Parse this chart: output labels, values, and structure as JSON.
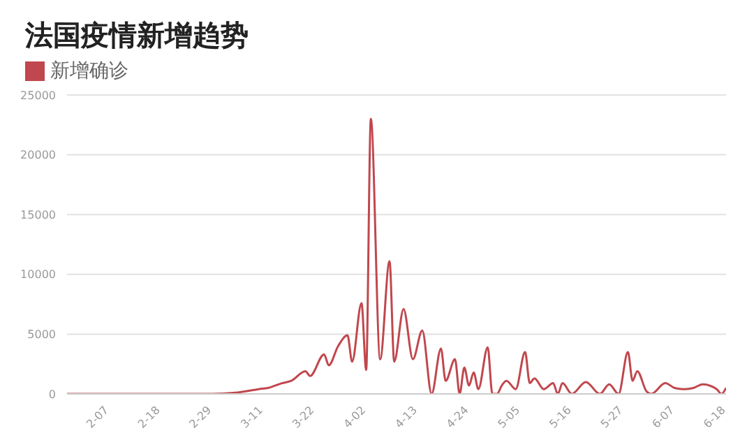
{
  "chart_data": {
    "type": "line",
    "title": "法国疫情新增趋势",
    "legend": "top left",
    "grid": "y",
    "marker": "none",
    "x": [
      "--01-29",
      "--02-29",
      "--03-05",
      "--03-10",
      "--03-12",
      "--03-15",
      "--03-17",
      "--03-20",
      "--03-21",
      "--03-24",
      "--03-25",
      "--03-27",
      "--03-29",
      "--03-30",
      "--04-01",
      "--04-02",
      "--04-03",
      "--04-05",
      "--04-07",
      "--04-08",
      "--04-10",
      "--04-12",
      "--04-14",
      "--04-16",
      "--04-18",
      "--04-19",
      "--04-21",
      "--04-22",
      "--04-23",
      "--04-24",
      "--04-25",
      "--04-26",
      "--04-28",
      "--04-29",
      "--04-30",
      "--05-01",
      "--05-02",
      "--05-04",
      "--05-06",
      "--05-07",
      "--05-08",
      "--05-10",
      "--05-12",
      "--05-13",
      "--05-14",
      "--05-16",
      "--05-19",
      "--05-22",
      "--05-24",
      "--05-26",
      "--05-28",
      "--05-29",
      "--05-30",
      "--06-01",
      "--06-02",
      "--06-05",
      "--06-07",
      "--06-09",
      "--06-11",
      "--06-13",
      "--06-16",
      "--06-17",
      "--06-18"
    ],
    "series": [
      {
        "name": "新增确诊",
        "color": "#c0474d",
        "values": [
          0,
          0,
          100,
          400,
          500,
          900,
          1100,
          1900,
          1500,
          3300,
          2400,
          4000,
          4900,
          2700,
          7600,
          2000,
          23000,
          2900,
          11100,
          2700,
          7100,
          2900,
          5300,
          0,
          3800,
          1100,
          2900,
          0,
          2200,
          700,
          1800,
          400,
          3900,
          0,
          0,
          700,
          1100,
          400,
          3500,
          900,
          1300,
          400,
          900,
          0,
          900,
          0,
          1000,
          0,
          800,
          0,
          3500,
          1100,
          1900,
          200,
          0,
          900,
          500,
          400,
          500,
          800,
          400,
          0,
          500
        ]
      }
    ],
    "xlim": [
      "--01-29",
      "--06-18"
    ],
    "xticks": [
      {
        "value": "--02-07",
        "label": "2-07"
      },
      {
        "value": "--02-18",
        "label": "2-18"
      },
      {
        "value": "--02-29",
        "label": "2-29"
      },
      {
        "value": "--03-11",
        "label": "3-11"
      },
      {
        "value": "--03-22",
        "label": "3-22"
      },
      {
        "value": "--04-02",
        "label": "4-02"
      },
      {
        "value": "--04-13",
        "label": "4-13"
      },
      {
        "value": "--04-24",
        "label": "4-24"
      },
      {
        "value": "--05-05",
        "label": "5-05"
      },
      {
        "value": "--05-16",
        "label": "5-16"
      },
      {
        "value": "--05-27",
        "label": "5-27"
      },
      {
        "value": "--06-07",
        "label": "6-07"
      },
      {
        "value": "--06-18",
        "label": "6-18"
      }
    ],
    "ylim": [
      0,
      25000
    ],
    "yticks": [
      0,
      5000,
      10000,
      15000,
      20000,
      25000
    ]
  }
}
